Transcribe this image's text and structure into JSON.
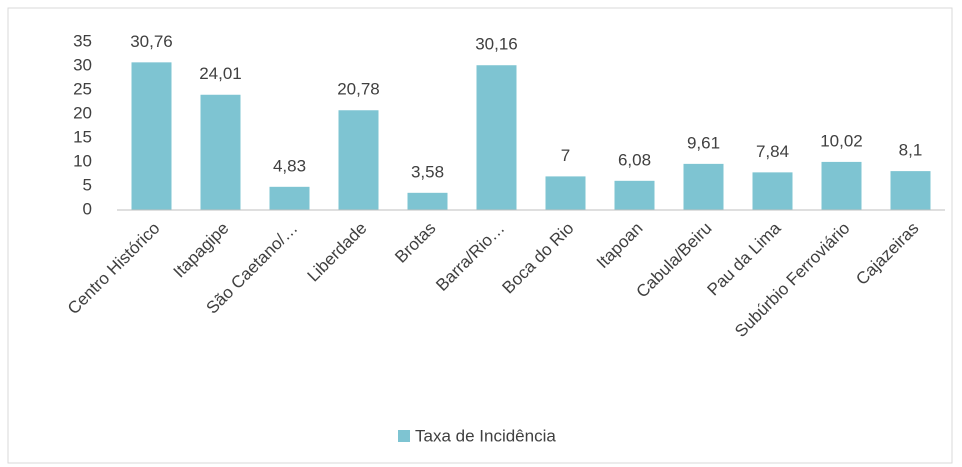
{
  "chart_data": {
    "type": "bar",
    "categories": [
      "Centro Histórico",
      "Itapagipe",
      "São Caetano/…",
      "Liberdade",
      "Brotas",
      "Barra/Rio…",
      "Boca do Rio",
      "Itapoan",
      "Cabula/Beiru",
      "Pau da Lima",
      "Subúrbio Ferroviário",
      "Cajazeiras"
    ],
    "series": [
      {
        "name": "Taxa de Incidência",
        "color": "#7ec4d2",
        "values": [
          30.76,
          24.01,
          4.83,
          20.78,
          3.58,
          30.16,
          7,
          6.08,
          9.61,
          7.84,
          10.02,
          8.1
        ],
        "value_labels": [
          "30,76",
          "24,01",
          "4,83",
          "20,78",
          "3,58",
          "30,16",
          "7",
          "6,08",
          "9,61",
          "7,84",
          "10,02",
          "8,1"
        ]
      }
    ],
    "ylim": [
      0,
      35
    ],
    "yticks": [
      0,
      5,
      10,
      15,
      20,
      25,
      30,
      35
    ],
    "grid": false,
    "legend": "bottom"
  }
}
